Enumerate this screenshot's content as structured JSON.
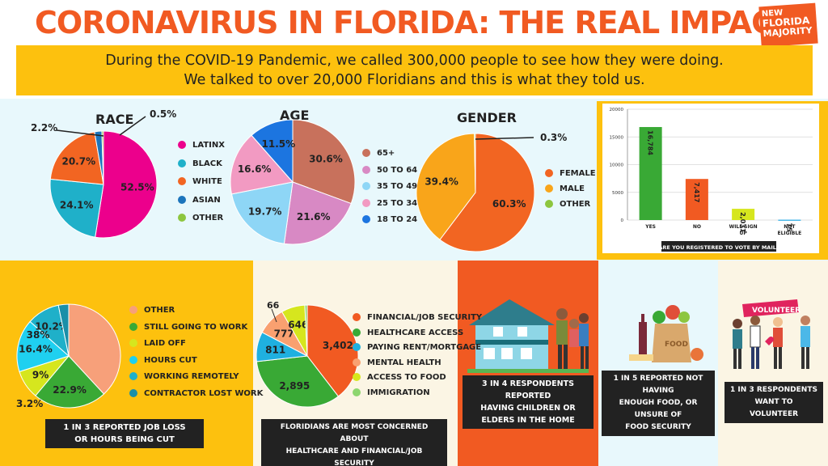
{
  "title": "CORONAVIRUS IN FLORIDA: THE REAL IMPACT",
  "logo": {
    "line1": "NEW",
    "line2": "FLORIDA",
    "line3": "MAJORITY"
  },
  "banner": {
    "line1": "During the COVID-19 Pandemic, we called 300,000 people to see how they were doing.",
    "line2": "We talked to over 20,000 Floridians and this is what they told us."
  },
  "captions": {
    "job": [
      "1 IN 3 REPORTED JOB LOSS",
      "OR HOURS BEING CUT"
    ],
    "concerns": [
      "FLORIDIANS ARE MOST CONCERNED ABOUT",
      "HEALTHCARE AND FINANCIAL/JOB SECURITY"
    ],
    "children": [
      "3 IN 4 RESPONDENTS REPORTED",
      "HAVING CHILDREN OR",
      "ELDERS IN THE HOME"
    ],
    "food": [
      "1 IN 5 REPORTED NOT HAVING",
      "ENOUGH FOOD, OR UNSURE OF",
      "FOOD SECURITY"
    ],
    "volunteer": [
      "1 IN 3 RESPONDENTS",
      "WANT TO VOLUNTEER"
    ],
    "volunteer_sign": "VOLUNTEER",
    "food_bag": "FOOD"
  },
  "chart_data": [
    {
      "id": "race",
      "type": "pie",
      "title": "RACE",
      "categories": [
        "LATINX",
        "BLACK",
        "WHITE",
        "ASIAN",
        "OTHER"
      ],
      "values": [
        52.5,
        24.1,
        20.7,
        2.2,
        0.5
      ],
      "labels": [
        "52.5%",
        "24.1%",
        "20.7%",
        "2.2%",
        "0.5%"
      ],
      "colors": [
        "#ec008c",
        "#1fb0c9",
        "#f26522",
        "#1c75bc",
        "#8dc63f"
      ]
    },
    {
      "id": "age",
      "type": "pie",
      "title": "AGE",
      "categories": [
        "65+",
        "50 TO 64",
        "35 TO 49",
        "25 TO 34",
        "18 TO 24"
      ],
      "values": [
        30.6,
        21.6,
        19.7,
        16.6,
        11.5
      ],
      "labels": [
        "30.6%",
        "21.6%",
        "19.7%",
        "16.6%",
        "11.5%"
      ],
      "colors": [
        "#c8715c",
        "#d889c4",
        "#8ed6f6",
        "#f29ac2",
        "#1c75e0"
      ]
    },
    {
      "id": "gender",
      "type": "pie",
      "title": "GENDER",
      "categories": [
        "FEMALE",
        "MALE",
        "OTHER"
      ],
      "values": [
        60.3,
        39.4,
        0.3
      ],
      "labels": [
        "60.3%",
        "39.4%",
        "0.3%"
      ],
      "colors": [
        "#f26522",
        "#f9a51a",
        "#8dc63f"
      ]
    },
    {
      "id": "vote",
      "type": "bar",
      "xlabel": "ARE YOU REGISTERED TO VOTE BY MAIL?",
      "categories": [
        "YES",
        "NO",
        "WILL SIGN UP",
        "NOT ELIGIBLE"
      ],
      "values": [
        16784,
        7417,
        2031,
        75
      ],
      "value_labels": [
        "16,784",
        "7,417",
        "2,031",
        "75"
      ],
      "colors": [
        "#39a935",
        "#f15a22",
        "#d6e61e",
        "#4bb8e8"
      ],
      "ylim": [
        0,
        20000
      ],
      "yticks": [
        "0",
        "5000",
        "10000",
        "15000",
        "20000"
      ],
      "grid": true
    },
    {
      "id": "job",
      "type": "pie",
      "categories": [
        "OTHER",
        "STILL GOING TO WORK",
        "LAID OFF",
        "HOURS CUT",
        "WORKING REMOTELY",
        "CONTRACTOR LOST WORK"
      ],
      "values": [
        38,
        22.9,
        9,
        16.4,
        10.2,
        3.2
      ],
      "labels": [
        "38%",
        "22.9%",
        "9%",
        "16.4%",
        "10.2%",
        "3.2%"
      ],
      "colors": [
        "#f7a07a",
        "#39a935",
        "#d6e61e",
        "#1fd0f0",
        "#1fb0c9",
        "#1a8fa8"
      ]
    },
    {
      "id": "concerns",
      "type": "pie",
      "categories": [
        "FINANCIAL/JOB SECURITY",
        "HEALTHCARE ACCESS",
        "PAYING RENT/MORTGAGE",
        "MENTAL HEALTH",
        "ACCESS TO FOOD",
        "IMMIGRATION"
      ],
      "values": [
        3402,
        2895,
        811,
        777,
        646,
        66
      ],
      "labels": [
        "3,402",
        "2,895",
        "811",
        "777",
        "646",
        "66"
      ],
      "colors": [
        "#f15a22",
        "#39a935",
        "#1fb0e0",
        "#f9a070",
        "#d6e61e",
        "#8dd66f"
      ]
    }
  ]
}
